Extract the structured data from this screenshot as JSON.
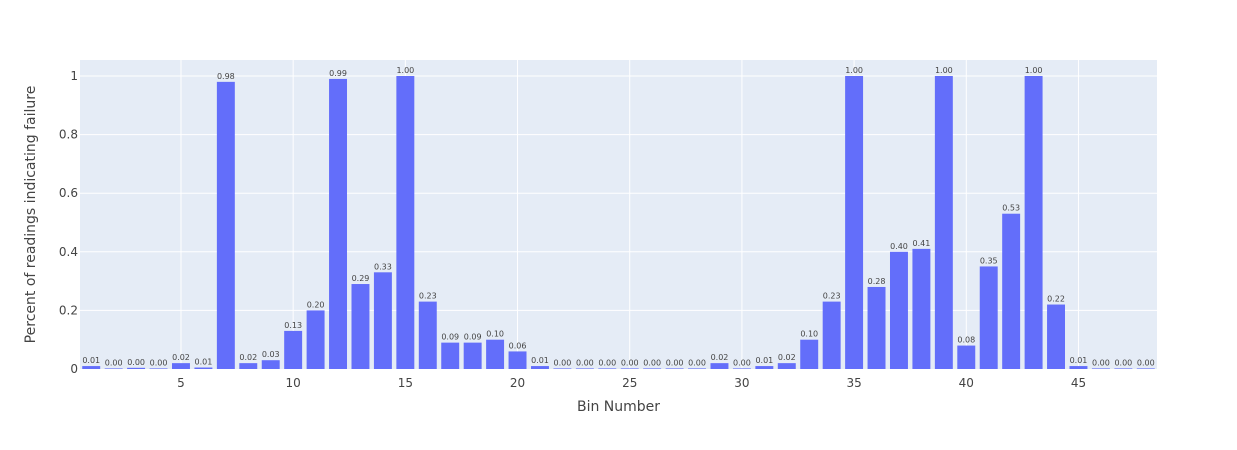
{
  "chart_data": {
    "type": "bar",
    "xlabel": "Bin Number",
    "ylabel": "Percent of readings indicating failure",
    "xlim": [
      0.5,
      48.5
    ],
    "ylim": [
      0,
      1.0
    ],
    "x_ticks": [
      5,
      10,
      15,
      20,
      25,
      30,
      35,
      40,
      45
    ],
    "x_tick_labels": [
      "5",
      "10",
      "15",
      "20",
      "25",
      "30",
      "35",
      "40",
      "45"
    ],
    "y_ticks": [
      0,
      0.2,
      0.4,
      0.6,
      0.8,
      1.0
    ],
    "y_tick_labels": [
      "0",
      "0.2",
      "0.4",
      "0.6",
      "0.8",
      "1"
    ],
    "grid": true,
    "bar_color": "#636efa",
    "plot_bg": "#e5ecf6",
    "x": [
      1,
      2,
      3,
      4,
      5,
      6,
      7,
      8,
      9,
      10,
      11,
      12,
      13,
      14,
      15,
      16,
      17,
      18,
      19,
      20,
      21,
      22,
      23,
      24,
      25,
      26,
      27,
      28,
      29,
      30,
      31,
      32,
      33,
      34,
      35,
      36,
      37,
      38,
      39,
      40,
      41,
      42,
      43,
      44,
      45,
      46,
      47,
      48
    ],
    "values": [
      0.01,
      0.002,
      0.004,
      0.002,
      0.02,
      0.005,
      0.98,
      0.02,
      0.03,
      0.13,
      0.2,
      0.99,
      0.29,
      0.33,
      1.0,
      0.23,
      0.09,
      0.09,
      0.1,
      0.06,
      0.01,
      0.002,
      0.002,
      0.002,
      0.002,
      0.002,
      0.002,
      0.002,
      0.02,
      0.002,
      0.01,
      0.02,
      0.1,
      0.23,
      1.0,
      0.28,
      0.4,
      0.41,
      1.0,
      0.08,
      0.35,
      0.53,
      1.0,
      0.22,
      0.01,
      0.002,
      0.002,
      0.002
    ],
    "labels": [
      "0.01",
      "0.00",
      "0.00",
      "0.00",
      "0.02",
      "0.01",
      "0.98",
      "0.02",
      "0.03",
      "0.13",
      "0.20",
      "0.99",
      "0.29",
      "0.33",
      "1.00",
      "0.23",
      "0.09",
      "0.09",
      "0.10",
      "0.06",
      "0.01",
      "0.00",
      "0.00",
      "0.00",
      "0.00",
      "0.00",
      "0.00",
      "0.00",
      "0.02",
      "0.00",
      "0.01",
      "0.02",
      "0.10",
      "0.23",
      "1.00",
      "0.28",
      "0.40",
      "0.41",
      "1.00",
      "0.08",
      "0.35",
      "0.53",
      "1.00",
      "0.22",
      "0.01",
      "0.00",
      "0.00",
      "0.00"
    ]
  }
}
